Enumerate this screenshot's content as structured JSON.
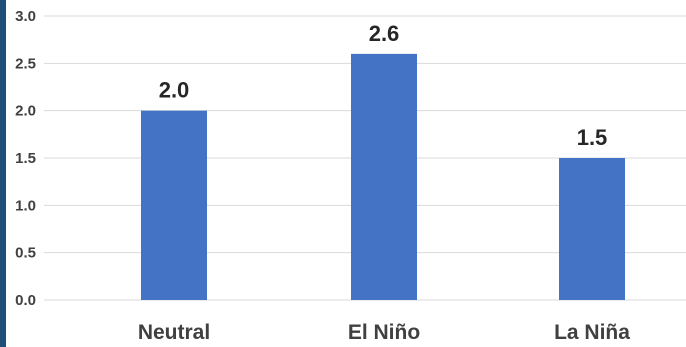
{
  "chart_data": {
    "type": "bar",
    "categories": [
      "Neutral",
      "El Niño",
      "La Niña"
    ],
    "values": [
      2.0,
      2.6,
      1.5
    ],
    "value_labels": [
      "2.0",
      "2.6",
      "1.5"
    ],
    "y_ticks": [
      "0.0",
      "0.5",
      "1.0",
      "1.5",
      "2.0",
      "2.5",
      "3.0"
    ],
    "ylim": [
      0,
      3.0
    ],
    "grid": true,
    "legend": "none",
    "title": "",
    "xlabel": "",
    "ylabel": "",
    "bar_color": "#4472c4",
    "grid_color": "#d9d9d9",
    "accent_edge_color": "#1f4e79"
  }
}
